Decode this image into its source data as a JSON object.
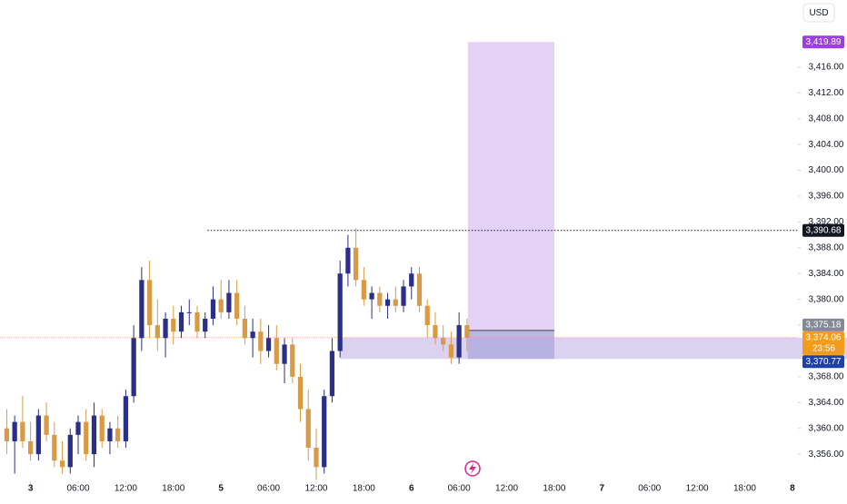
{
  "chart_data": {
    "type": "candlestick",
    "currency": "USD",
    "up_color": "#2b2f87",
    "down_color": "#d99a45",
    "x": [
      -3,
      -2,
      -1,
      0,
      1,
      2,
      3,
      4,
      5,
      6,
      7,
      8,
      9,
      10,
      11,
      12,
      13,
      14,
      15,
      16,
      17,
      18,
      19,
      20,
      21,
      22,
      23,
      24,
      25,
      26,
      27,
      28,
      29,
      30,
      31,
      32,
      33,
      34,
      35,
      36,
      37,
      38,
      39,
      40,
      41,
      42,
      43,
      44,
      45,
      46,
      47,
      48,
      49,
      50,
      51,
      52,
      53,
      54,
      55
    ],
    "open": [
      3360,
      3358,
      3361,
      3358,
      3356,
      3362,
      3359,
      3355,
      3354,
      3359,
      3361,
      3356,
      3362,
      3358,
      3360,
      3358,
      3365,
      3374,
      3383,
      3376,
      3374,
      3377,
      3375,
      3378,
      3378,
      3375,
      3377,
      3380,
      3378,
      3381,
      3377,
      3374,
      3375,
      3372,
      3374,
      3370,
      3373,
      3368,
      3363,
      3357,
      3354,
      3365,
      3372,
      3384,
      3388,
      3383,
      3380,
      3381,
      3379,
      3380,
      3379,
      3382,
      3384,
      3379,
      3376,
      3374,
      3373,
      3371,
      3376
    ],
    "high": [
      3363,
      3362,
      3365,
      3361,
      3363,
      3364,
      3361,
      3358,
      3360,
      3362,
      3363,
      3364,
      3363,
      3361,
      3362,
      3366,
      3376,
      3385,
      3386,
      3380,
      3378,
      3379,
      3379,
      3380,
      3379,
      3378,
      3382,
      3383,
      3383,
      3383,
      3379,
      3377,
      3377,
      3376,
      3376,
      3374,
      3374,
      3370,
      3366,
      3360,
      3366,
      3374,
      3386,
      3390,
      3391,
      3385,
      3382,
      3382,
      3381,
      3382,
      3383,
      3385,
      3385,
      3380,
      3378,
      3376,
      3375,
      3378,
      3377
    ],
    "low": [
      3356,
      3353,
      3357,
      3355,
      3355,
      3358,
      3354,
      3353,
      3353,
      3356,
      3355,
      3354,
      3357,
      3356,
      3357,
      3357,
      3364,
      3372,
      3374,
      3372,
      3371,
      3373,
      3374,
      3376,
      3374,
      3374,
      3376,
      3377,
      3377,
      3376,
      3373,
      3371,
      3370,
      3371,
      3369,
      3367,
      3367,
      3361,
      3355,
      3352,
      3353,
      3364,
      3371,
      3382,
      3382,
      3379,
      3377,
      3378,
      3377,
      3378,
      3378,
      3380,
      3378,
      3374,
      3373,
      3372,
      3370,
      3370,
      3372
    ],
    "close": [
      3358,
      3361,
      3358,
      3356,
      3362,
      3359,
      3355,
      3354,
      3359,
      3361,
      3356,
      3362,
      3358,
      3360,
      3358,
      3365,
      3374,
      3383,
      3376,
      3374,
      3377,
      3375,
      3378,
      3378,
      3375,
      3377,
      3380,
      3378,
      3381,
      3377,
      3374,
      3375,
      3372,
      3374,
      3370,
      3373,
      3368,
      3363,
      3357,
      3354,
      3365,
      3372,
      3384,
      3388,
      3383,
      3380,
      3381,
      3379,
      3380,
      3379,
      3382,
      3384,
      3379,
      3376,
      3374,
      3373,
      3371,
      3376,
      3374.06
    ],
    "xlim": [
      -3.85,
      96.7
    ],
    "ylim": [
      3351.8,
      3426.4
    ],
    "xticks": [
      {
        "value": 0,
        "label": "3"
      },
      {
        "value": 6,
        "label": "06:00"
      },
      {
        "value": 12,
        "label": "12:00"
      },
      {
        "value": 18,
        "label": "18:00"
      },
      {
        "value": 24,
        "label": "5"
      },
      {
        "value": 30,
        "label": "06:00"
      },
      {
        "value": 36,
        "label": "12:00"
      },
      {
        "value": 42,
        "label": "18:00"
      },
      {
        "value": 48,
        "label": "6"
      },
      {
        "value": 54,
        "label": "06:00"
      },
      {
        "value": 60,
        "label": "12:00"
      },
      {
        "value": 66,
        "label": "18:00"
      },
      {
        "value": 72,
        "label": "7"
      },
      {
        "value": 78,
        "label": "06:00"
      },
      {
        "value": 84,
        "label": "12:00"
      },
      {
        "value": 90,
        "label": "18:00"
      },
      {
        "value": 96,
        "label": "8"
      }
    ],
    "yticks": [
      {
        "value": 3356,
        "label": "3,356.00"
      },
      {
        "value": 3360,
        "label": "3,360.00"
      },
      {
        "value": 3364,
        "label": "3,364.00"
      },
      {
        "value": 3368,
        "label": "3,368.00"
      },
      {
        "value": 3372,
        "label": "3,372.00"
      },
      {
        "value": 3376,
        "label": "3,376.00"
      },
      {
        "value": 3380,
        "label": "3,380.00"
      },
      {
        "value": 3384,
        "label": "3,384.00"
      },
      {
        "value": 3388,
        "label": "3,388.00"
      },
      {
        "value": 3392,
        "label": "3,392.00"
      },
      {
        "value": 3396,
        "label": "3,396.00"
      },
      {
        "value": 3400,
        "label": "3,400.00"
      },
      {
        "value": 3404,
        "label": "3,404.00"
      },
      {
        "value": 3408,
        "label": "3,408.00"
      },
      {
        "value": 3412,
        "label": "3,412.00"
      },
      {
        "value": 3416,
        "label": "3,416.00"
      }
    ],
    "zone": {
      "x_start": 39,
      "low": 3370.77,
      "high": 3374.06,
      "color": "#cdc3ea"
    },
    "position": {
      "x_start": 55.1,
      "x_end": 66,
      "entry": 3375.18,
      "target": 3419.89,
      "stop": 3370.77,
      "target_color": "#e3d2f5",
      "stop_color": "#b4aee0"
    },
    "level_line": {
      "x_start": 22.3,
      "value": 3390.68
    },
    "price_labels": [
      {
        "value": 3419.89,
        "label": "3,419.89",
        "color": "#9c3fe0"
      },
      {
        "value": 3390.68,
        "label": "3,390.68",
        "color": "#131722"
      },
      {
        "value": 3375.18,
        "label": "3,375.18",
        "color": "#868993"
      },
      {
        "value": 3374.06,
        "label": "3,374.06",
        "color": "#f29d1a",
        "countdown": "23:56"
      },
      {
        "value": 3370.77,
        "label": "3,370.77",
        "color": "#1e40a8"
      }
    ]
  }
}
